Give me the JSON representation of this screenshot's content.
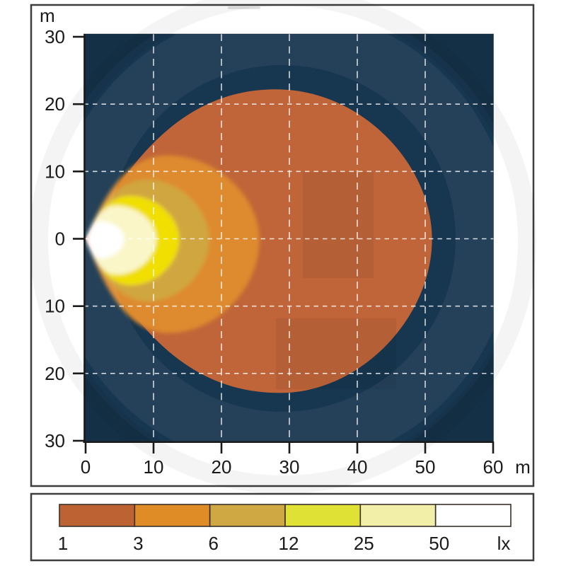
{
  "chart_data": {
    "type": "isolux_contour",
    "description": "Work lamp light distribution isolux diagram",
    "background_color": "#17364f",
    "x_axis": {
      "unit": "m",
      "range": [
        0,
        60
      ],
      "ticks": [
        "0",
        "10",
        "20",
        "30",
        "40",
        "50",
        "60"
      ]
    },
    "y_axis": {
      "unit": "m",
      "range": [
        -30,
        30
      ],
      "ticks": [
        "30",
        "20",
        "10",
        "0",
        "10",
        "20",
        "30"
      ]
    },
    "grid": {
      "style": "dashed-white",
      "x_lines_m": [
        10,
        20,
        30,
        40,
        50
      ],
      "y_lines_m": [
        -20,
        -10,
        0,
        10,
        20
      ]
    },
    "contours_lx": [
      {
        "level": "1",
        "color": "#bf6539",
        "reach_m": 51.0,
        "half_height_up_m": 22.2,
        "half_height_down_m": 22.9,
        "peak_x_m": 28.0
      },
      {
        "level": "3",
        "color": "#de8a2d",
        "reach_m": 25.6,
        "half_height_up_m": 12.4,
        "half_height_down_m": 14.0,
        "peak_x_m": 12.0
      },
      {
        "level": "6",
        "color": "#d0a640",
        "reach_m": 18.2,
        "half_height_up_m": 8.8,
        "half_height_down_m": 9.3,
        "peak_x_m": 9.0
      },
      {
        "level": "12",
        "color": "#f0df00",
        "reach_m": 13.8,
        "half_height_up_m": 6.4,
        "half_height_down_m": 6.9,
        "peak_x_m": 6.5
      },
      {
        "level": "25",
        "color": "#faf6c8",
        "reach_m": 10.4,
        "half_height_up_m": 4.9,
        "half_height_down_m": 5.3,
        "peak_x_m": 4.5
      },
      {
        "level": "50",
        "color": "#ffffff",
        "reach_m": 5.7,
        "half_height_up_m": 2.6,
        "half_height_down_m": 2.9,
        "peak_x_m": 2.2
      }
    ]
  },
  "legend": {
    "unit_label": "lx",
    "entries": [
      {
        "label": "1",
        "color": "#bd6233"
      },
      {
        "label": "3",
        "color": "#e08c26"
      },
      {
        "label": "6",
        "color": "#d0a843"
      },
      {
        "label": "12",
        "color": "#dfe135"
      },
      {
        "label": "25",
        "color": "#f2f0a8"
      },
      {
        "label": "50",
        "color": "#ffffff"
      }
    ],
    "swatch_border_color": "#3a3028"
  },
  "frame_color": "#3d3d3d",
  "axis_color": "#1a1a1a"
}
